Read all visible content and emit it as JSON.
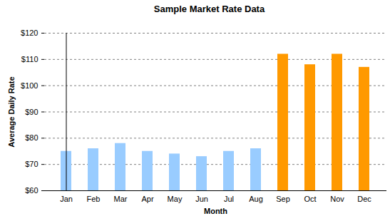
{
  "chart_data": {
    "type": "bar",
    "title": "Sample Market Rate Data",
    "x_label": "Month",
    "y_label": "Average Daily Rate",
    "categories": [
      "Jan",
      "Feb",
      "Mar",
      "Apr",
      "May",
      "Jun",
      "Jul",
      "Aug",
      "Sep",
      "Oct",
      "Nov",
      "Dec"
    ],
    "values": [
      75,
      76,
      78,
      75,
      74,
      73,
      75,
      76,
      112,
      108,
      112,
      107
    ],
    "colors": [
      "#99ccff",
      "#99ccff",
      "#99ccff",
      "#99ccff",
      "#99ccff",
      "#99ccff",
      "#99ccff",
      "#99ccff",
      "#ff9900",
      "#ff9900",
      "#ff9900",
      "#ff9900"
    ],
    "ylim": [
      60,
      120
    ],
    "yticks": [
      {
        "value": 60,
        "label": "$60"
      },
      {
        "value": 70,
        "label": "$70"
      },
      {
        "value": 80,
        "label": "$80"
      },
      {
        "value": 90,
        "label": "$90"
      },
      {
        "value": 100,
        "label": "$100"
      },
      {
        "value": 110,
        "label": "$110"
      },
      {
        "value": 120,
        "label": "$120"
      }
    ],
    "grid": true
  }
}
